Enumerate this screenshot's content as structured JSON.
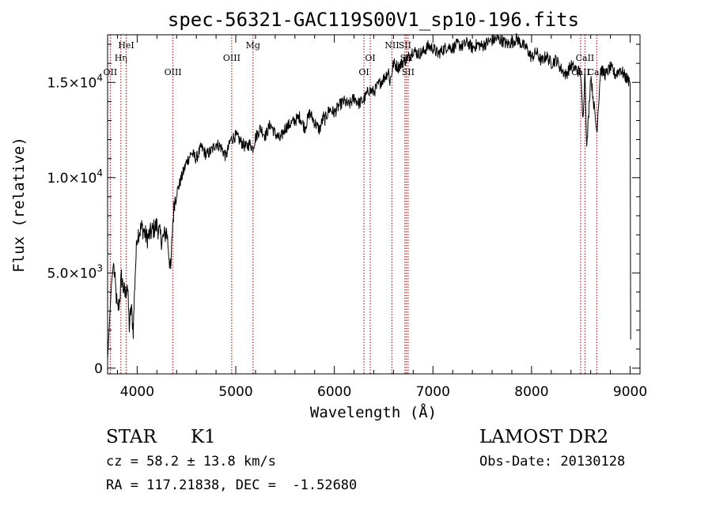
{
  "chart_data": {
    "type": "line",
    "title": "spec-56321-GAC119S00V1_sp10-196.fits",
    "xlabel": "Wavelength (Å)",
    "ylabel": "Flux (relative)",
    "xlim": [
      3700,
      9100
    ],
    "ylim": [
      -300,
      17500
    ],
    "x_ticks": [
      {
        "value": 4000,
        "label": "4000"
      },
      {
        "value": 5000,
        "label": "5000"
      },
      {
        "value": 6000,
        "label": "6000"
      },
      {
        "value": 7000,
        "label": "7000"
      },
      {
        "value": 8000,
        "label": "8000"
      },
      {
        "value": 9000,
        "label": "9000"
      }
    ],
    "y_ticks": [
      {
        "value": 0,
        "label": "0",
        "exp": ""
      },
      {
        "value": 5000,
        "label": "5.0×10",
        "exp": "3"
      },
      {
        "value": 10000,
        "label": "1.0×10",
        "exp": "4"
      },
      {
        "value": 15000,
        "label": "1.5×10",
        "exp": "4"
      }
    ],
    "grid": false,
    "line_color": "#000000",
    "marker_color": "#8b0000",
    "spectrum": {
      "x": [
        3700,
        3720,
        3740,
        3760,
        3800,
        3820,
        3840,
        3860,
        3880,
        3900,
        3920,
        3940,
        3960,
        3980,
        4000,
        4050,
        4100,
        4150,
        4200,
        4250,
        4300,
        4340,
        4360,
        4380,
        4400,
        4450,
        4500,
        4550,
        4600,
        4650,
        4700,
        4750,
        4800,
        4850,
        4900,
        4950,
        5000,
        5050,
        5100,
        5150,
        5170,
        5200,
        5250,
        5300,
        5350,
        5400,
        5450,
        5500,
        5550,
        5600,
        5650,
        5700,
        5750,
        5800,
        5850,
        5890,
        5900,
        5950,
        6000,
        6050,
        6100,
        6150,
        6200,
        6250,
        6300,
        6350,
        6400,
        6450,
        6500,
        6550,
        6563,
        6600,
        6650,
        6700,
        6750,
        6800,
        6850,
        6900,
        6950,
        7000,
        7050,
        7100,
        7150,
        7200,
        7250,
        7300,
        7350,
        7400,
        7450,
        7500,
        7550,
        7600,
        7650,
        7700,
        7750,
        7800,
        7850,
        7900,
        7950,
        8000,
        8050,
        8100,
        8150,
        8200,
        8250,
        8300,
        8350,
        8400,
        8450,
        8498,
        8520,
        8542,
        8560,
        8600,
        8662,
        8700,
        8750,
        8800,
        8850,
        8900,
        8950,
        9000,
        9005
      ],
      "y": [
        500,
        2500,
        4500,
        5500,
        3000,
        3500,
        4800,
        4200,
        3800,
        4500,
        2200,
        3200,
        2000,
        5000,
        7000,
        7400,
        6800,
        7200,
        7500,
        6700,
        7200,
        5000,
        7600,
        8800,
        9200,
        10000,
        10800,
        11300,
        11000,
        11600,
        11200,
        11400,
        11800,
        11600,
        11100,
        12000,
        12200,
        11900,
        11600,
        11800,
        11500,
        12100,
        12600,
        12200,
        12800,
        12300,
        12000,
        12600,
        12800,
        13000,
        13200,
        12600,
        13400,
        12900,
        12500,
        13200,
        13000,
        13600,
        13400,
        13800,
        14000,
        13800,
        14200,
        13900,
        14100,
        14600,
        14500,
        14900,
        15200,
        15600,
        15000,
        16000,
        15800,
        16100,
        16300,
        16700,
        16500,
        16600,
        16900,
        16800,
        16500,
        16700,
        16900,
        16800,
        17000,
        16900,
        17100,
        16800,
        17000,
        16900,
        17100,
        17200,
        17300,
        17200,
        17000,
        17100,
        17300,
        17000,
        16800,
        16300,
        16600,
        16100,
        16400,
        16000,
        16200,
        15700,
        15400,
        15900,
        15700,
        15500,
        13000,
        15600,
        11500,
        15400,
        12400,
        15700,
        15400,
        15800,
        15400,
        15700,
        15300,
        15000,
        1500
      ]
    },
    "line_markers": [
      {
        "x": 3727,
        "label": "OII",
        "level": 3
      },
      {
        "x": 3835,
        "label": "Hη",
        "level": 2
      },
      {
        "x": 3889,
        "label": "HeI",
        "level": 1
      },
      {
        "x": 4363,
        "label": "OIII",
        "level": 3
      },
      {
        "x": 4959,
        "label": "OIII",
        "level": 2
      },
      {
        "x": 5175,
        "label": "Mg",
        "level": 1
      },
      {
        "x": 6300,
        "label": "OI",
        "level": 3
      },
      {
        "x": 6364,
        "label": "OI",
        "level": 2
      },
      {
        "x": 6584,
        "label": "NII",
        "level": 1
      },
      {
        "x": 6716,
        "label": "SII",
        "level": 1
      },
      {
        "x": 6731,
        "label": "SII",
        "level": 2
      },
      {
        "x": 6748,
        "label": "SII",
        "level": 3
      },
      {
        "x": 8498,
        "label": "CaII",
        "level": 3
      },
      {
        "x": 8542,
        "label": "CaII",
        "level": 2
      },
      {
        "x": 8662,
        "label": "CaII",
        "level": 3
      }
    ]
  },
  "info": {
    "class": "STAR",
    "subclass": "K1",
    "survey": "LAMOST DR2",
    "cz": "cz = 58.2 ± 13.8 km/s",
    "obs_date": "Obs-Date: 20130128",
    "coords": "RA = 117.21838, DEC =  -1.52680"
  }
}
